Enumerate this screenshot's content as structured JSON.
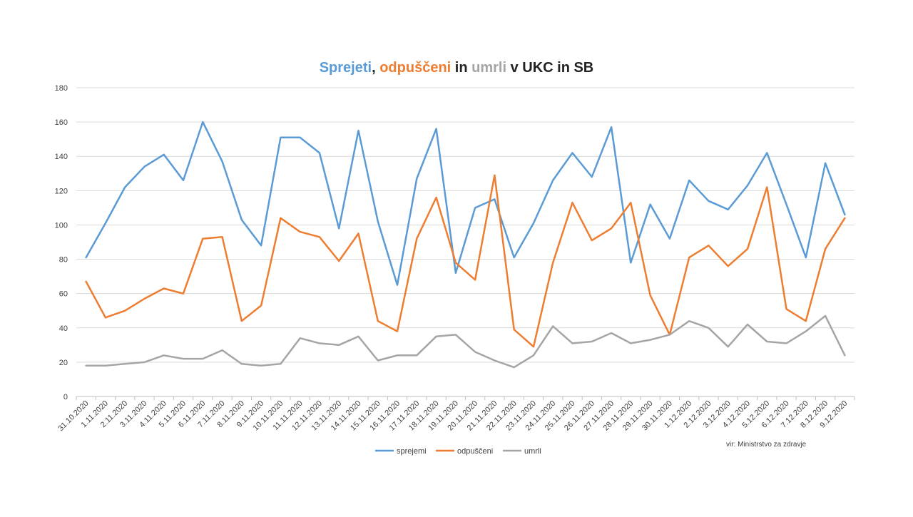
{
  "chart_data": {
    "type": "line",
    "title_parts": [
      {
        "text": "Sprejeti",
        "color": "#5B9BD5"
      },
      {
        "text": ", ",
        "color": "#222222"
      },
      {
        "text": "odpuščeni",
        "color": "#ED7D31"
      },
      {
        "text": " in ",
        "color": "#222222"
      },
      {
        "text": "umrli",
        "color": "#A5A5A5"
      },
      {
        "text": " v UKC in SB",
        "color": "#222222"
      }
    ],
    "categories": [
      "31.10.2020",
      "1.11.2020",
      "2.11.2020",
      "3.11.2020",
      "4.11.2020",
      "5.11.2020",
      "6.11.2020",
      "7.11.2020",
      "8.11.2020",
      "9.11.2020",
      "10.11.2020",
      "11.11.2020",
      "12.11.2020",
      "13.11.2020",
      "14.11.2020",
      "15.11.2020",
      "16.11.2020",
      "17.11.2020",
      "18.11.2020",
      "19.11.2020",
      "20.11.2020",
      "21.11.2020",
      "22.11.2020",
      "23.11.2020",
      "24.11.2020",
      "25.11.2020",
      "26.11.2020",
      "27.11.2020",
      "28.11.2020",
      "29.11.2020",
      "30.11.2020",
      "1.12.2020",
      "2.12.2020",
      "3.12.2020",
      "4.12.2020",
      "5.12.2020",
      "6.12.2020",
      "7.12.2020",
      "8.12.2020",
      "9.12.2020"
    ],
    "series": [
      {
        "name": "sprejemi",
        "color": "#5B9BD5",
        "values": [
          81,
          101,
          122,
          134,
          141,
          126,
          160,
          137,
          103,
          88,
          151,
          151,
          142,
          98,
          155,
          102,
          65,
          127,
          156,
          72,
          110,
          115,
          81,
          101,
          126,
          142,
          128,
          157,
          78,
          112,
          92,
          126,
          114,
          109,
          123,
          142,
          112,
          81,
          136,
          106
        ]
      },
      {
        "name": "odpuščeni",
        "color": "#ED7D31",
        "values": [
          67,
          46,
          50,
          57,
          63,
          60,
          92,
          93,
          44,
          53,
          104,
          96,
          93,
          79,
          95,
          44,
          38,
          92,
          116,
          78,
          68,
          129,
          39,
          29,
          78,
          113,
          91,
          98,
          113,
          59,
          36,
          81,
          88,
          76,
          86,
          122,
          51,
          44,
          86,
          104
        ]
      },
      {
        "name": "umrli",
        "color": "#A5A5A5",
        "values": [
          18,
          18,
          19,
          20,
          24,
          22,
          22,
          27,
          19,
          18,
          19,
          34,
          31,
          30,
          35,
          21,
          24,
          24,
          35,
          36,
          26,
          21,
          17,
          24,
          41,
          31,
          32,
          37,
          31,
          33,
          36,
          44,
          40,
          29,
          42,
          32,
          31,
          38,
          47,
          24
        ]
      }
    ],
    "ylim": [
      0,
      180
    ],
    "yticks": [
      0,
      20,
      40,
      60,
      80,
      100,
      120,
      140,
      160,
      180
    ],
    "grid": true,
    "legend_position": "bottom",
    "source_note": "vir: Ministrstvo za zdravje"
  }
}
